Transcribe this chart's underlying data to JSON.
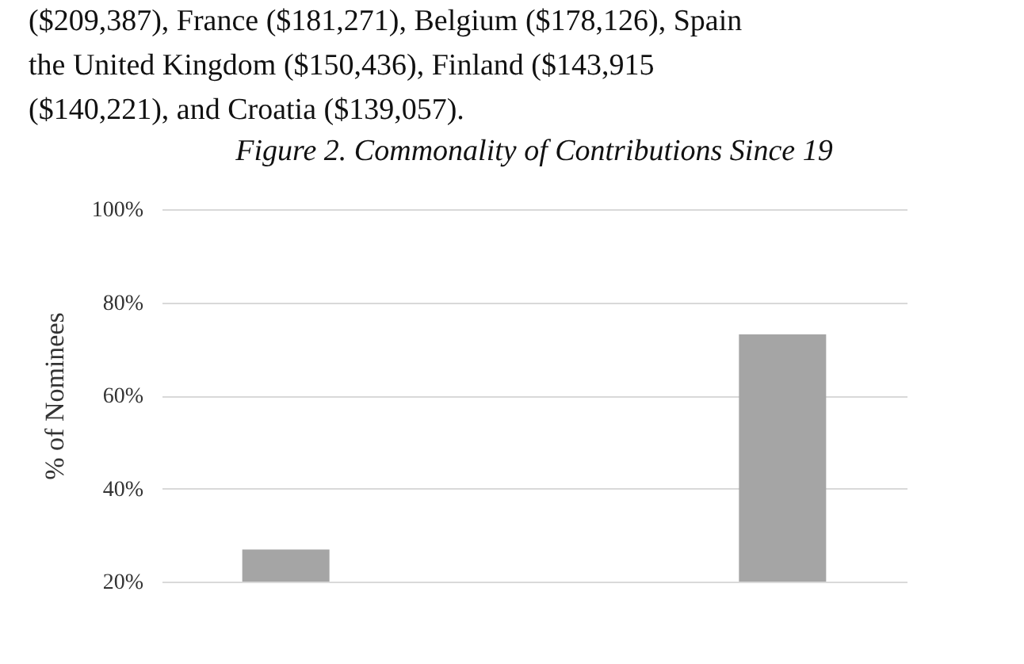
{
  "chart_data": {
    "type": "bar",
    "title": "Figure 2. Commonality of Contributions Since 19",
    "annotations": [
      "($209,387), France ($181,271), Belgium ($178,126), Spain",
      "the United Kingdom ($150,436), Finland ($143,915",
      "($140,221), and Croatia ($139,057)."
    ],
    "ylabel": "% of Nominees",
    "categories": [
      null,
      null,
      null
    ],
    "values": [
      26.9,
      null,
      73.1
    ],
    "color": "#a5a5a5",
    "ylim": [
      20,
      100
    ],
    "yticks": [
      {
        "value": 20,
        "label": "20%"
      },
      {
        "value": 40,
        "label": "40%"
      },
      {
        "value": 60,
        "label": "60%"
      },
      {
        "value": 80,
        "label": "80%"
      },
      {
        "value": 100,
        "label": "100%"
      }
    ],
    "grid": "y"
  }
}
